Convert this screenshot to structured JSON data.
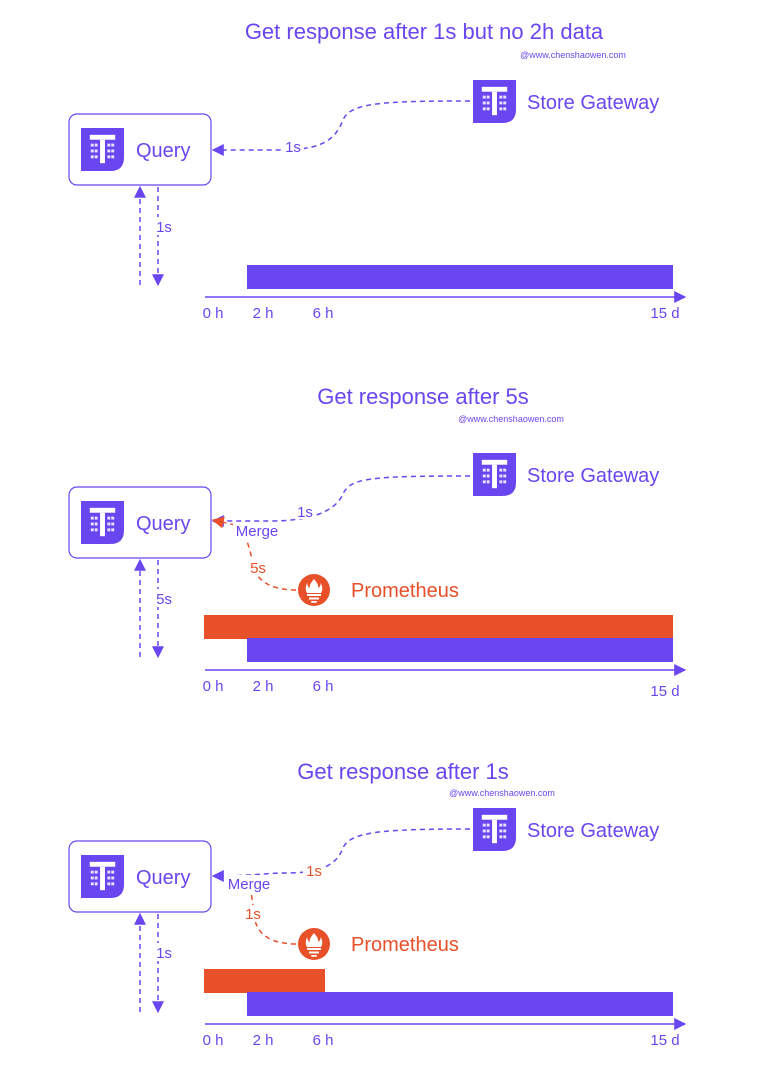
{
  "colors": {
    "accent": "#6a46f0",
    "prometheus": "#e8502a",
    "background": "#ffffff"
  },
  "panels": [
    {
      "title": "Get response after 1s but no 2h data",
      "credit": "@www.chenshaowen.com",
      "query_label": "Query",
      "store_label": "Store Gateway",
      "store_latency": "1s",
      "response_latency": "1s",
      "axis_ticks": [
        "0 h",
        "2 h",
        "6 h",
        "15 d"
      ],
      "icons": [
        "thanos-query-icon",
        "thanos-store-icon"
      ]
    },
    {
      "title": "Get response after 5s",
      "credit": "@www.chenshaowen.com",
      "query_label": "Query",
      "store_label": "Store Gateway",
      "store_latency": "1s",
      "prometheus_label": "Prometheus",
      "prometheus_latency": "5s",
      "merge_label": "Merge",
      "response_latency": "5s",
      "axis_ticks": [
        "0 h",
        "2 h",
        "6 h",
        "15 d"
      ],
      "icons": [
        "thanos-query-icon",
        "thanos-store-icon",
        "prometheus-icon"
      ]
    },
    {
      "title": "Get response after 1s",
      "credit": "@www.chenshaowen.com",
      "query_label": "Query",
      "store_label": "Store Gateway",
      "store_latency": "1s",
      "prometheus_label": "Prometheus",
      "prometheus_latency": "1s",
      "merge_label": "Merge",
      "response_latency": "1s",
      "axis_ticks": [
        "0 h",
        "2 h",
        "6 h",
        "15 d"
      ],
      "icons": [
        "thanos-query-icon",
        "thanos-store-icon",
        "prometheus-icon"
      ]
    }
  ]
}
